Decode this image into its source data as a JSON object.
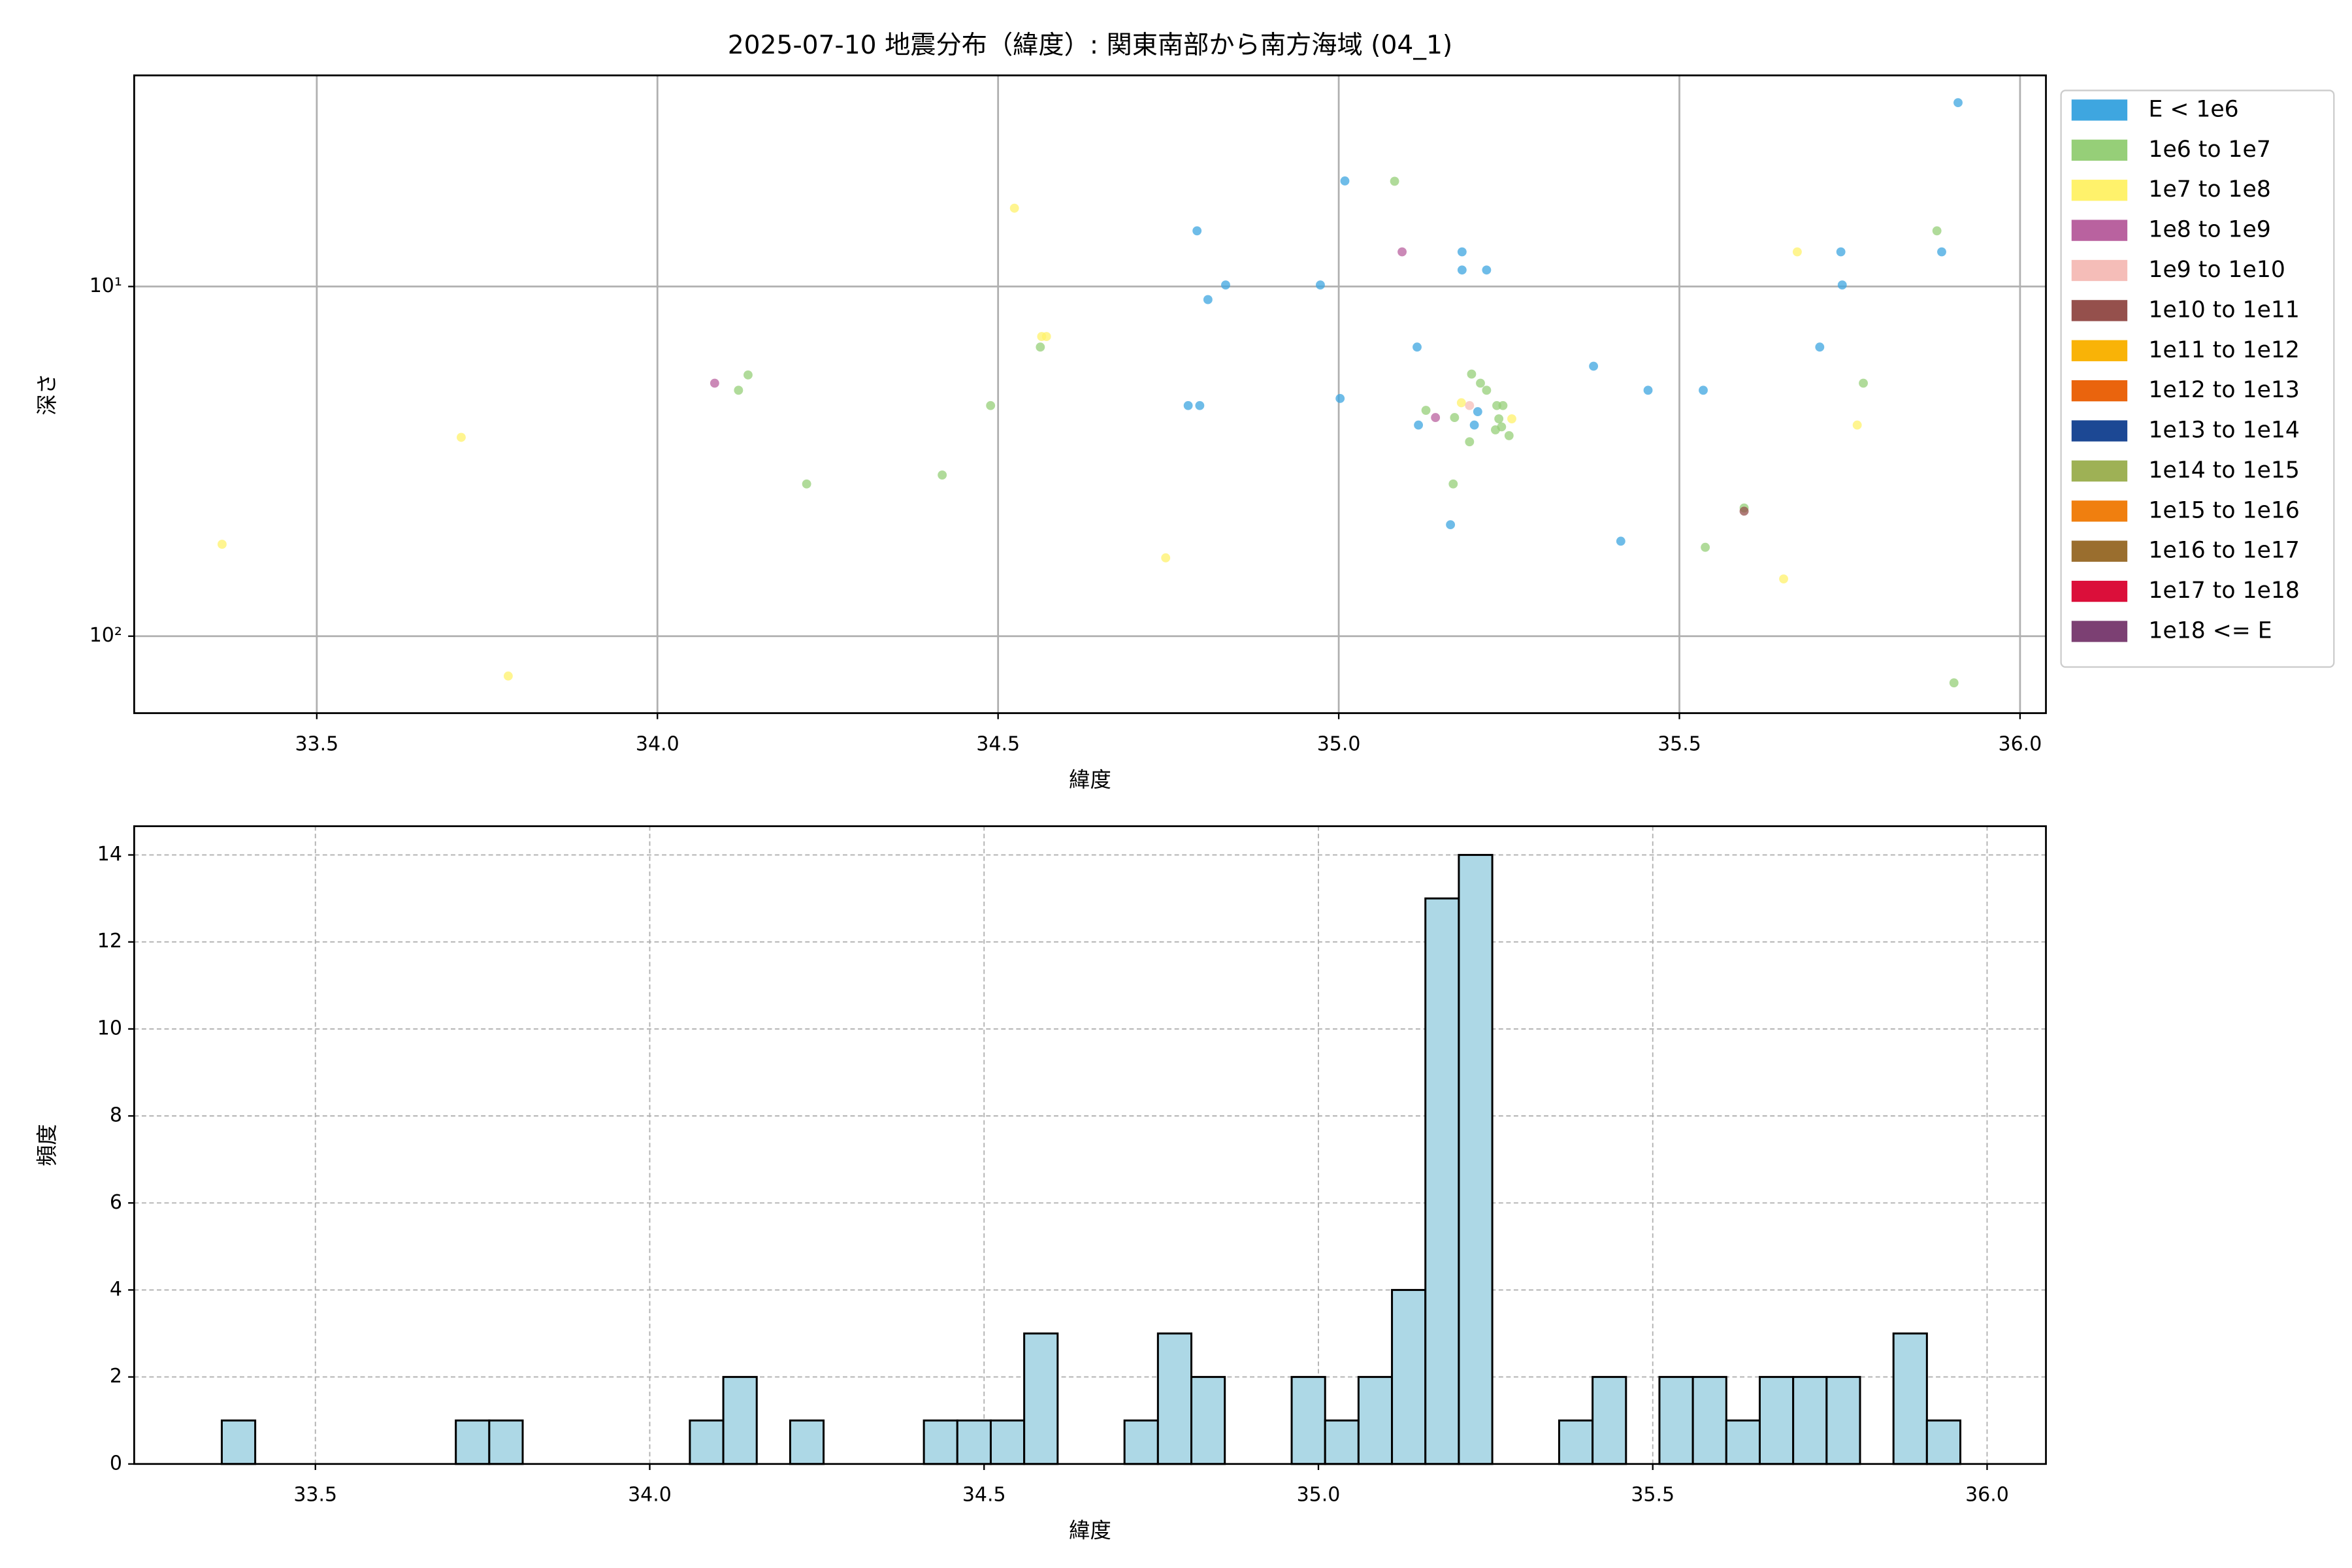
{
  "chart_data": [
    {
      "type": "scatter",
      "title": "2025-07-10 地震分布（緯度）: 関東南部から南方海域 (04_1)",
      "xlabel": "緯度",
      "ylabel": "深さ",
      "xlim": [
        33.232,
        36.038
      ],
      "xticks": [
        33.5,
        {
          "value": 34,
          "label": "34.0"
        },
        34.5,
        {
          "value": 35,
          "label": "35.0"
        },
        35.5,
        {
          "value": 36,
          "label": "36.0"
        }
      ],
      "yscale": "log",
      "ylim": [
        166,
        2.49
      ],
      "yticks": [
        {
          "value": 10,
          "label": "10¹"
        },
        {
          "value": 100,
          "label": "10²"
        }
      ],
      "grid": true,
      "legend": "outside right",
      "series": [
        {
          "name": "E < 1e6",
          "color": "#3ea6e0",
          "x": [
            35.909,
            35.009,
            34.792,
            35.181,
            35.737,
            35.885,
            35.181,
            35.217,
            34.834,
            34.973,
            35.739,
            34.808,
            35.115,
            35.706,
            35.374,
            35.454,
            35.535,
            35.002,
            34.779,
            34.796,
            35.204,
            35.117,
            35.199,
            35.164,
            35.414
          ],
          "values": [
            2.98,
            4.99,
            6.93,
            7.96,
            7.96,
            7.96,
            8.97,
            8.97,
            9.9,
            9.9,
            9.9,
            10.9,
            14.9,
            14.9,
            16.9,
            19.8,
            19.8,
            20.9,
            21.9,
            21.9,
            22.8,
            24.9,
            24.9,
            48,
            53.5
          ]
        },
        {
          "name": "1e6 to 1e7",
          "color": "#96cf78",
          "x": [
            35.082,
            35.878,
            34.562,
            34.133,
            35.77,
            34.119,
            35.195,
            35.208,
            35.217,
            34.489,
            35.232,
            35.241,
            35.128,
            35.17,
            35.235,
            35.239,
            35.23,
            35.25,
            35.192,
            34.418,
            34.219,
            35.168,
            35.538,
            35.903,
            35.595
          ],
          "values": [
            5,
            6.93,
            14.9,
            17.9,
            18.9,
            19.8,
            17.8,
            18.9,
            19.8,
            21.9,
            21.9,
            21.9,
            22.6,
            23.7,
            23.9,
            25.2,
            25.7,
            26.7,
            27.8,
            34.6,
            36.7,
            36.7,
            55.7,
            136,
            43
          ]
        },
        {
          "name": "1e7 to 1e8",
          "color": "#fff26b",
          "x": [
            34.524,
            35.673,
            34.564,
            34.571,
            35.18,
            35.254,
            35.761,
            33.712,
            33.361,
            34.746,
            35.653,
            33.781
          ],
          "values": [
            5.97,
            7.96,
            13.9,
            13.9,
            21.5,
            23.9,
            24.9,
            27,
            54.6,
            59.7,
            68.6,
            130
          ]
        },
        {
          "name": "1e8 to 1e9",
          "color": "#b9629f",
          "x": [
            35.093,
            34.084,
            35.142
          ],
          "values": [
            7.96,
            18.9,
            23.7
          ]
        },
        {
          "name": "1e9 to 1e10",
          "color": "#f5bdb8",
          "x": [
            35.192
          ],
          "values": [
            21.9
          ]
        },
        {
          "name": "1e10 to 1e11",
          "color": "#95504c",
          "x": [
            35.595
          ],
          "values": [
            43.9
          ]
        },
        {
          "name": "1e11 to 1e12",
          "color": "#f9b307",
          "x": [],
          "values": []
        },
        {
          "name": "1e12 to 1e13",
          "color": "#ea640d",
          "x": [],
          "values": []
        },
        {
          "name": "1e13 to 1e14",
          "color": "#1c4894",
          "x": [],
          "values": []
        },
        {
          "name": "1e14 to 1e15",
          "color": "#9eb155",
          "x": [],
          "values": []
        },
        {
          "name": "1e15 to 1e16",
          "color": "#f07f0f",
          "x": [],
          "values": []
        },
        {
          "name": "1e16 to 1e17",
          "color": "#9a6e2e",
          "x": [],
          "values": []
        },
        {
          "name": "1e17 to 1e18",
          "color": "#db0f3a",
          "x": [],
          "values": []
        },
        {
          "name": "1e18 <= E",
          "color": "#7c4073",
          "x": [],
          "values": []
        }
      ]
    },
    {
      "type": "histogram",
      "xlabel": "緯度",
      "ylabel": "頻度",
      "color": "#add8e6",
      "edgecolor": "#000000",
      "xlim": [
        33.229,
        36.088
      ],
      "xticks": [
        33.5,
        {
          "value": 34,
          "label": "34.0"
        },
        34.5,
        {
          "value": 35,
          "label": "35.0"
        },
        35.5,
        {
          "value": 36,
          "label": "36.0"
        }
      ],
      "ylim": [
        0,
        14.66
      ],
      "yticks": [
        0,
        2,
        4,
        6,
        8,
        10,
        12,
        14
      ],
      "grid": true,
      "bins": [
        33.36,
        33.41,
        33.46,
        33.51,
        33.56,
        33.61,
        33.66,
        33.71,
        33.76,
        33.81,
        33.86,
        33.91,
        33.96,
        34.01,
        34.06,
        34.11,
        34.16,
        34.21,
        34.26,
        34.31,
        34.36,
        34.41,
        34.46,
        34.51,
        34.56,
        34.61,
        34.66,
        34.71,
        34.76,
        34.81,
        34.86,
        34.91,
        34.96,
        35.01,
        35.06,
        35.11,
        35.16,
        35.21,
        35.26,
        35.31,
        35.36,
        35.41,
        35.46,
        35.51,
        35.56,
        35.61,
        35.66,
        35.71,
        35.76,
        35.81,
        35.86,
        35.91,
        35.96
      ],
      "values": [
        1,
        0,
        0,
        0,
        0,
        0,
        0,
        1,
        1,
        0,
        0,
        0,
        0,
        0,
        1,
        2,
        0,
        1,
        0,
        0,
        0,
        1,
        1,
        1,
        3,
        0,
        0,
        1,
        3,
        2,
        0,
        0,
        2,
        1,
        2,
        4,
        13,
        14,
        0,
        0,
        1,
        2,
        0,
        2,
        2,
        1,
        2,
        2,
        2,
        0,
        3,
        1
      ]
    }
  ]
}
